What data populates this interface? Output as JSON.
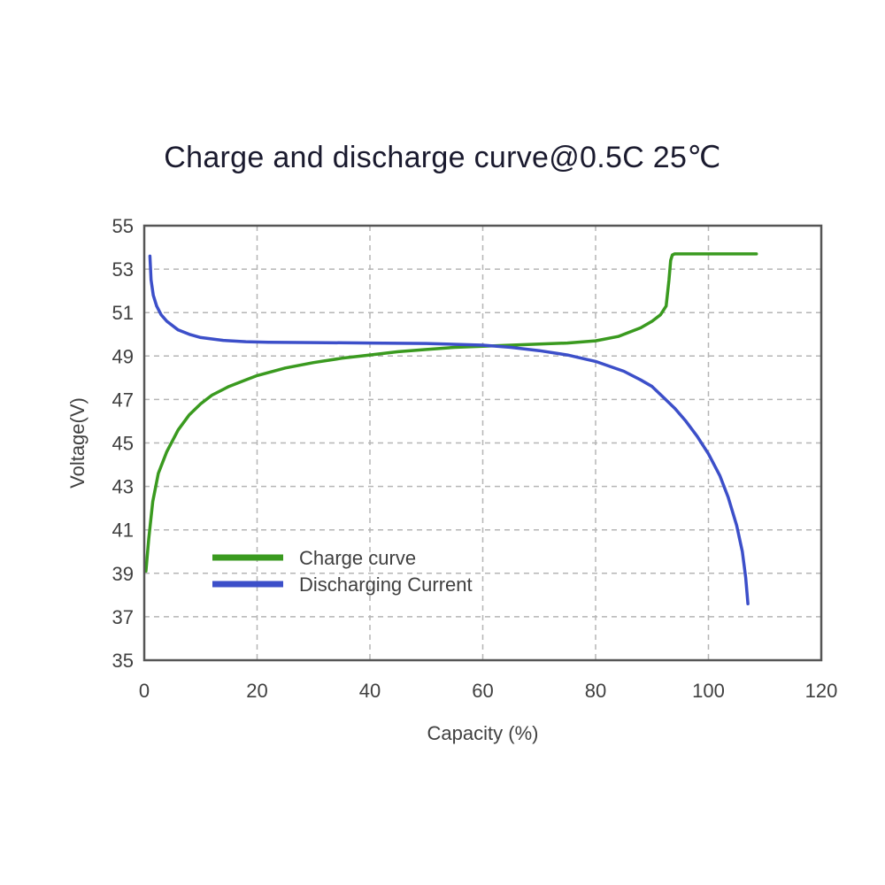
{
  "chart_data": {
    "type": "line",
    "title": "Charge and discharge curve@0.5C 25℃",
    "xlabel": "Capacity (%)",
    "ylabel": "Voltage(V)",
    "xlim": [
      0,
      120
    ],
    "ylim": [
      35,
      55
    ],
    "xticks": [
      0,
      20,
      40,
      60,
      80,
      100,
      120
    ],
    "yticks": [
      35,
      37,
      39,
      41,
      43,
      45,
      47,
      49,
      51,
      53,
      55
    ],
    "grid": true,
    "legend_position": "lower-left",
    "series": [
      {
        "name": "Charge curve",
        "color": "#3a9a1f",
        "x": [
          0.3,
          0.8,
          1.5,
          2.5,
          4,
          6,
          8,
          10,
          12,
          15,
          18,
          20,
          25,
          30,
          35,
          40,
          45,
          50,
          55,
          60,
          65,
          70,
          75,
          80,
          84,
          88,
          90,
          91.5,
          92.5,
          93,
          93.3,
          93.6,
          94,
          95,
          100,
          105,
          108.5
        ],
        "y": [
          39.1,
          40.6,
          42.3,
          43.6,
          44.6,
          45.6,
          46.3,
          46.8,
          47.2,
          47.6,
          47.9,
          48.1,
          48.45,
          48.7,
          48.9,
          49.05,
          49.2,
          49.3,
          49.4,
          49.45,
          49.5,
          49.55,
          49.6,
          49.7,
          49.9,
          50.3,
          50.6,
          50.9,
          51.3,
          52.5,
          53.4,
          53.65,
          53.7,
          53.7,
          53.7,
          53.7,
          53.7
        ]
      },
      {
        "name": "Discharging Current",
        "color": "#3c4fc9",
        "x": [
          1,
          1.2,
          1.6,
          2.2,
          3,
          4,
          6,
          8,
          10,
          14,
          18,
          22,
          30,
          40,
          50,
          60,
          65,
          70,
          75,
          80,
          85,
          88,
          90,
          92,
          94,
          96,
          98,
          100,
          102,
          103.5,
          105,
          106,
          106.6,
          107
        ],
        "y": [
          53.6,
          52.5,
          51.8,
          51.3,
          50.9,
          50.6,
          50.2,
          50.0,
          49.85,
          49.72,
          49.66,
          49.63,
          49.62,
          49.6,
          49.58,
          49.5,
          49.4,
          49.25,
          49.05,
          48.75,
          48.3,
          47.9,
          47.6,
          47.1,
          46.6,
          46.0,
          45.3,
          44.5,
          43.5,
          42.5,
          41.2,
          40.0,
          38.8,
          37.6
        ]
      }
    ]
  }
}
